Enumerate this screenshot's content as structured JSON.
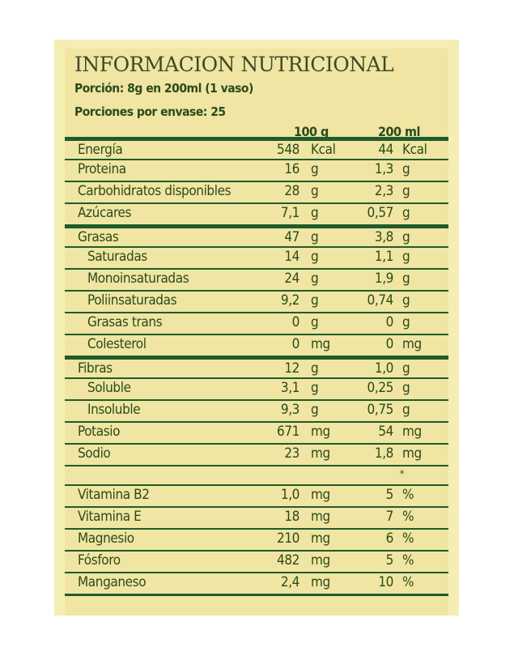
{
  "title": "INFORMACION NUTRICIONAL",
  "portion": "Porción: 8g en 200ml (1 vaso)",
  "portions_per_pack": "Porciones por envase: 25",
  "columns": [
    "100 g",
    "200 ml"
  ],
  "rows": [
    {
      "name": "Energía",
      "v1": "548",
      "u1": "Kcal",
      "v2": "44",
      "u2": "Kcal",
      "indent": false
    },
    {
      "name": "Proteina",
      "v1": "16",
      "u1": "g",
      "v2": "1,3",
      "u2": "g",
      "indent": false
    },
    {
      "name": "Carbohidratos disponibles",
      "v1": "28",
      "u1": "g",
      "v2": "2,3",
      "u2": "g",
      "indent": false
    },
    {
      "name": "Azúcares",
      "v1": "7,1",
      "u1": "g",
      "v2": "0,57",
      "u2": "g",
      "indent": false
    },
    {
      "name": "Grasas",
      "v1": "47",
      "u1": "g",
      "v2": "3,8",
      "u2": "g",
      "indent": false
    },
    {
      "name": "Saturadas",
      "v1": "14",
      "u1": "g",
      "v2": "1,1",
      "u2": "g",
      "indent": true
    },
    {
      "name": "Monoinsaturadas",
      "v1": "24",
      "u1": "g",
      "v2": "1,9",
      "u2": "g",
      "indent": true
    },
    {
      "name": "Poliinsaturadas",
      "v1": "9,2",
      "u1": "g",
      "v2": "0,74",
      "u2": "g",
      "indent": true
    },
    {
      "name": "Grasas trans",
      "v1": "0",
      "u1": "g",
      "v2": "0",
      "u2": "g",
      "indent": true
    },
    {
      "name": "Colesterol",
      "v1": "0",
      "u1": "mg",
      "v2": "0",
      "u2": "mg",
      "indent": true
    },
    {
      "name": "Fibras",
      "v1": "12",
      "u1": "g",
      "v2": "1,0",
      "u2": "g",
      "indent": false
    },
    {
      "name": "Soluble",
      "v1": "3,1",
      "u1": "g",
      "v2": "0,25",
      "u2": "g",
      "indent": true
    },
    {
      "name": "Insoluble",
      "v1": "9,3",
      "u1": "g",
      "v2": "0,75",
      "u2": "g",
      "indent": true
    },
    {
      "name": "Potasio",
      "v1": "671",
      "u1": "mg",
      "v2": "54",
      "u2": "mg",
      "indent": false
    },
    {
      "name": "Sodio",
      "v1": "23",
      "u1": "mg",
      "v2": "1,8",
      "u2": "mg",
      "indent": false
    }
  ],
  "star_note": "*",
  "vitamins": [
    {
      "name": "Vitamina B2",
      "v1": "1,0",
      "u1": "mg",
      "v2": "5",
      "u2": "%"
    },
    {
      "name": "Vitamina E",
      "v1": "18",
      "u1": "mg",
      "v2": "7",
      "u2": "%"
    },
    {
      "name": "Magnesio",
      "v1": "210",
      "u1": "mg",
      "v2": "6",
      "u2": "%"
    },
    {
      "name": "Fósforo",
      "v1": "482",
      "u1": "mg",
      "v2": "5",
      "u2": "%"
    },
    {
      "name": "Manganeso",
      "v1": "2,4",
      "u1": "mg",
      "v2": "10",
      "u2": "%"
    }
  ],
  "colors": {
    "background": "#f0e5a2",
    "border": "#f5eeb4",
    "rule": "#1f5c2c",
    "text": "#2b4a1c"
  }
}
